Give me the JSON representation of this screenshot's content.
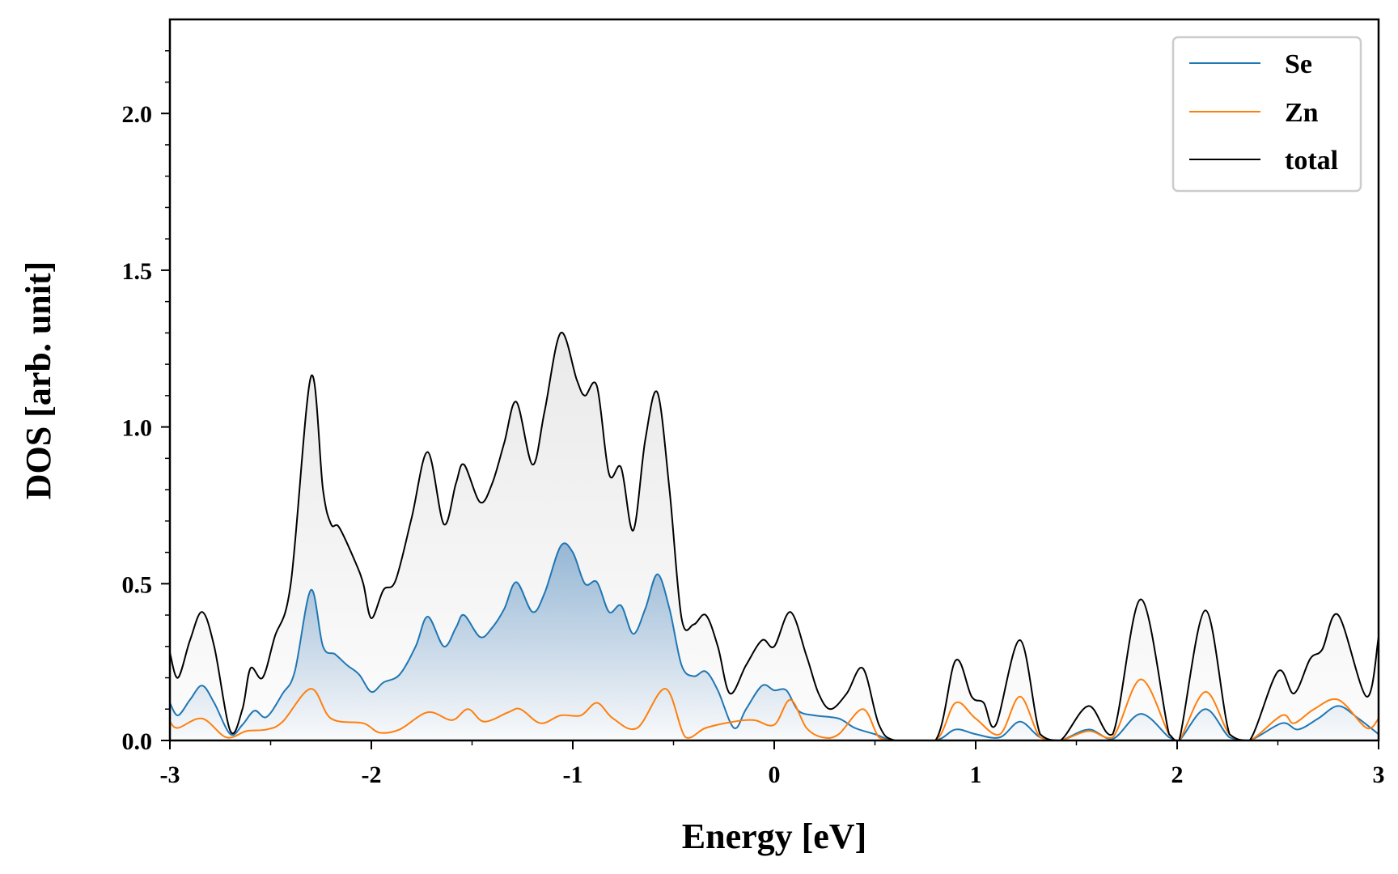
{
  "chart_data": {
    "type": "line",
    "title": "",
    "xlabel": "Energy [eV]",
    "ylabel": "DOS [arb. unit]",
    "xlim": [
      -3,
      3
    ],
    "ylim": [
      0,
      2.3
    ],
    "x_ticks": [
      -3,
      -2,
      -1,
      0,
      1,
      2,
      3
    ],
    "x_tick_labels": [
      "-3",
      "-2",
      "-1",
      "0",
      "1",
      "2",
      "3"
    ],
    "y_ticks": [
      0,
      0.5,
      1.0,
      1.5,
      2.0
    ],
    "y_tick_labels": [
      "0.0",
      "0.5",
      "1.0",
      "1.5",
      "2.0"
    ],
    "legend_position": "top-right",
    "grid": false,
    "series": [
      {
        "name": "Se",
        "color": "#1f77b4",
        "points": [
          [
            -3.0,
            0.12
          ],
          [
            -2.96,
            0.08
          ],
          [
            -2.9,
            0.13
          ],
          [
            -2.84,
            0.175
          ],
          [
            -2.78,
            0.12
          ],
          [
            -2.7,
            0.02
          ],
          [
            -2.64,
            0.05
          ],
          [
            -2.58,
            0.095
          ],
          [
            -2.52,
            0.075
          ],
          [
            -2.44,
            0.15
          ],
          [
            -2.38,
            0.22
          ],
          [
            -2.3,
            0.48
          ],
          [
            -2.24,
            0.3
          ],
          [
            -2.18,
            0.275
          ],
          [
            -2.12,
            0.24
          ],
          [
            -2.06,
            0.21
          ],
          [
            -2.0,
            0.155
          ],
          [
            -1.94,
            0.185
          ],
          [
            -1.86,
            0.21
          ],
          [
            -1.78,
            0.3
          ],
          [
            -1.72,
            0.395
          ],
          [
            -1.64,
            0.3
          ],
          [
            -1.58,
            0.36
          ],
          [
            -1.54,
            0.4
          ],
          [
            -1.46,
            0.33
          ],
          [
            -1.4,
            0.36
          ],
          [
            -1.34,
            0.42
          ],
          [
            -1.28,
            0.505
          ],
          [
            -1.2,
            0.41
          ],
          [
            -1.14,
            0.47
          ],
          [
            -1.06,
            0.62
          ],
          [
            -1.0,
            0.6
          ],
          [
            -0.94,
            0.5
          ],
          [
            -0.88,
            0.505
          ],
          [
            -0.82,
            0.41
          ],
          [
            -0.76,
            0.43
          ],
          [
            -0.7,
            0.34
          ],
          [
            -0.64,
            0.42
          ],
          [
            -0.58,
            0.53
          ],
          [
            -0.52,
            0.42
          ],
          [
            -0.46,
            0.24
          ],
          [
            -0.4,
            0.205
          ],
          [
            -0.34,
            0.22
          ],
          [
            -0.28,
            0.16
          ],
          [
            -0.2,
            0.04
          ],
          [
            -0.14,
            0.1
          ],
          [
            -0.06,
            0.175
          ],
          [
            0.0,
            0.16
          ],
          [
            0.06,
            0.16
          ],
          [
            0.12,
            0.095
          ],
          [
            0.2,
            0.08
          ],
          [
            0.32,
            0.07
          ],
          [
            0.4,
            0.04
          ],
          [
            0.5,
            0.02
          ],
          [
            0.6,
            0.0
          ],
          [
            0.8,
            0.0
          ],
          [
            0.9,
            0.035
          ],
          [
            1.0,
            0.02
          ],
          [
            1.12,
            0.01
          ],
          [
            1.22,
            0.06
          ],
          [
            1.32,
            0.01
          ],
          [
            1.42,
            0.0
          ],
          [
            1.56,
            0.035
          ],
          [
            1.68,
            0.005
          ],
          [
            1.82,
            0.085
          ],
          [
            1.96,
            0.01
          ],
          [
            2.01,
            0.0
          ],
          [
            2.14,
            0.1
          ],
          [
            2.26,
            0.01
          ],
          [
            2.36,
            0.0
          ],
          [
            2.52,
            0.055
          ],
          [
            2.6,
            0.035
          ],
          [
            2.7,
            0.07
          ],
          [
            2.8,
            0.11
          ],
          [
            2.9,
            0.07
          ],
          [
            3.0,
            0.02
          ]
        ]
      },
      {
        "name": "Zn",
        "color": "#ff7f0e",
        "points": [
          [
            -3.0,
            0.06
          ],
          [
            -2.96,
            0.04
          ],
          [
            -2.84,
            0.07
          ],
          [
            -2.72,
            0.01
          ],
          [
            -2.62,
            0.03
          ],
          [
            -2.52,
            0.035
          ],
          [
            -2.44,
            0.06
          ],
          [
            -2.3,
            0.165
          ],
          [
            -2.2,
            0.07
          ],
          [
            -2.04,
            0.055
          ],
          [
            -1.96,
            0.025
          ],
          [
            -1.86,
            0.035
          ],
          [
            -1.72,
            0.09
          ],
          [
            -1.6,
            0.065
          ],
          [
            -1.52,
            0.1
          ],
          [
            -1.44,
            0.06
          ],
          [
            -1.32,
            0.09
          ],
          [
            -1.26,
            0.1
          ],
          [
            -1.16,
            0.055
          ],
          [
            -1.06,
            0.08
          ],
          [
            -0.96,
            0.08
          ],
          [
            -0.88,
            0.12
          ],
          [
            -0.8,
            0.07
          ],
          [
            -0.68,
            0.04
          ],
          [
            -0.54,
            0.165
          ],
          [
            -0.44,
            0.01
          ],
          [
            -0.34,
            0.04
          ],
          [
            -0.2,
            0.06
          ],
          [
            -0.1,
            0.065
          ],
          [
            0.0,
            0.05
          ],
          [
            0.08,
            0.13
          ],
          [
            0.16,
            0.04
          ],
          [
            0.24,
            0.01
          ],
          [
            0.32,
            0.02
          ],
          [
            0.44,
            0.1
          ],
          [
            0.52,
            0.01
          ],
          [
            0.6,
            0.0
          ],
          [
            0.8,
            0.0
          ],
          [
            0.9,
            0.12
          ],
          [
            1.0,
            0.07
          ],
          [
            1.12,
            0.02
          ],
          [
            1.22,
            0.14
          ],
          [
            1.32,
            0.01
          ],
          [
            1.42,
            0.0
          ],
          [
            1.56,
            0.03
          ],
          [
            1.68,
            0.01
          ],
          [
            1.82,
            0.195
          ],
          [
            1.96,
            0.02
          ],
          [
            2.01,
            0.0
          ],
          [
            2.14,
            0.155
          ],
          [
            2.26,
            0.02
          ],
          [
            2.36,
            0.0
          ],
          [
            2.52,
            0.08
          ],
          [
            2.58,
            0.055
          ],
          [
            2.68,
            0.1
          ],
          [
            2.8,
            0.13
          ],
          [
            2.94,
            0.04
          ],
          [
            3.0,
            0.07
          ]
        ]
      },
      {
        "name": "total",
        "color": "#000000",
        "points": [
          [
            -3.0,
            0.28
          ],
          [
            -2.96,
            0.2
          ],
          [
            -2.9,
            0.32
          ],
          [
            -2.84,
            0.41
          ],
          [
            -2.78,
            0.3
          ],
          [
            -2.7,
            0.03
          ],
          [
            -2.64,
            0.1
          ],
          [
            -2.6,
            0.23
          ],
          [
            -2.54,
            0.2
          ],
          [
            -2.48,
            0.33
          ],
          [
            -2.4,
            0.5
          ],
          [
            -2.3,
            1.16
          ],
          [
            -2.24,
            0.8
          ],
          [
            -2.2,
            0.69
          ],
          [
            -2.16,
            0.68
          ],
          [
            -2.08,
            0.57
          ],
          [
            -2.04,
            0.5
          ],
          [
            -2.0,
            0.39
          ],
          [
            -1.94,
            0.48
          ],
          [
            -1.88,
            0.51
          ],
          [
            -1.8,
            0.71
          ],
          [
            -1.72,
            0.92
          ],
          [
            -1.64,
            0.69
          ],
          [
            -1.58,
            0.82
          ],
          [
            -1.54,
            0.88
          ],
          [
            -1.46,
            0.76
          ],
          [
            -1.4,
            0.82
          ],
          [
            -1.34,
            0.95
          ],
          [
            -1.28,
            1.08
          ],
          [
            -1.2,
            0.88
          ],
          [
            -1.14,
            1.05
          ],
          [
            -1.06,
            1.3
          ],
          [
            -0.98,
            1.15
          ],
          [
            -0.94,
            1.1
          ],
          [
            -0.88,
            1.13
          ],
          [
            -0.82,
            0.85
          ],
          [
            -0.76,
            0.87
          ],
          [
            -0.7,
            0.67
          ],
          [
            -0.64,
            0.96
          ],
          [
            -0.58,
            1.11
          ],
          [
            -0.52,
            0.8
          ],
          [
            -0.46,
            0.39
          ],
          [
            -0.4,
            0.37
          ],
          [
            -0.34,
            0.4
          ],
          [
            -0.28,
            0.3
          ],
          [
            -0.22,
            0.15
          ],
          [
            -0.14,
            0.24
          ],
          [
            -0.06,
            0.32
          ],
          [
            0.0,
            0.3
          ],
          [
            0.08,
            0.41
          ],
          [
            0.16,
            0.27
          ],
          [
            0.22,
            0.15
          ],
          [
            0.28,
            0.1
          ],
          [
            0.36,
            0.15
          ],
          [
            0.44,
            0.23
          ],
          [
            0.52,
            0.05
          ],
          [
            0.6,
            0.0
          ],
          [
            0.8,
            0.0
          ],
          [
            0.9,
            0.255
          ],
          [
            0.98,
            0.14
          ],
          [
            1.04,
            0.12
          ],
          [
            1.1,
            0.05
          ],
          [
            1.22,
            0.32
          ],
          [
            1.32,
            0.02
          ],
          [
            1.42,
            0.0
          ],
          [
            1.56,
            0.11
          ],
          [
            1.68,
            0.02
          ],
          [
            1.82,
            0.45
          ],
          [
            1.96,
            0.02
          ],
          [
            2.01,
            0.0
          ],
          [
            2.14,
            0.415
          ],
          [
            2.26,
            0.02
          ],
          [
            2.36,
            0.0
          ],
          [
            2.5,
            0.22
          ],
          [
            2.58,
            0.15
          ],
          [
            2.66,
            0.26
          ],
          [
            2.72,
            0.29
          ],
          [
            2.8,
            0.4
          ],
          [
            2.94,
            0.14
          ],
          [
            3.0,
            0.33
          ]
        ]
      }
    ]
  }
}
